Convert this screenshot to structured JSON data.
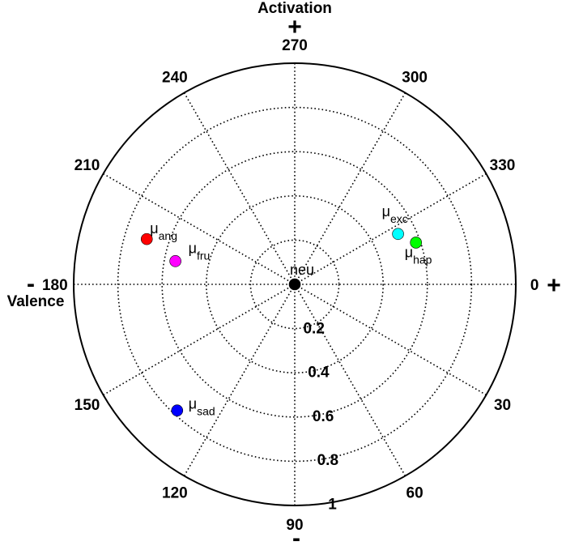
{
  "chart_data": {
    "type": "scatter",
    "coordinate_system": "polar",
    "angle_unit": "degrees",
    "r_range": [
      0,
      1
    ],
    "r_ticks": [
      "0.2",
      "0.4",
      "0.6",
      "0.8",
      "1"
    ],
    "r_tick_values": [
      0.2,
      0.4,
      0.6,
      0.8,
      1.0
    ],
    "angle_ticks": [
      {
        "angle": 0,
        "label": "0"
      },
      {
        "angle": 30,
        "label": "30"
      },
      {
        "angle": 60,
        "label": "60"
      },
      {
        "angle": 90,
        "label": "90"
      },
      {
        "angle": 120,
        "label": "120"
      },
      {
        "angle": 150,
        "label": "150"
      },
      {
        "angle": 180,
        "label": "180"
      },
      {
        "angle": 210,
        "label": "210"
      },
      {
        "angle": 240,
        "label": "240"
      },
      {
        "angle": 270,
        "label": "270"
      },
      {
        "angle": 300,
        "label": "300"
      },
      {
        "angle": 330,
        "label": "330"
      }
    ],
    "top_axis": {
      "label": "Activation",
      "sign": "+"
    },
    "bottom_axis": {
      "sign": "-"
    },
    "left_axis": {
      "label": "Valence",
      "sign": "-"
    },
    "right_axis": {
      "sign": "+"
    },
    "grid": true,
    "points": [
      {
        "name": "neu",
        "mu": "",
        "sub": "",
        "angle": 0,
        "r": 0.0,
        "color": "#000000"
      },
      {
        "name": "ang",
        "mu": "μ",
        "sub": "ang",
        "angle": 197,
        "r": 0.7,
        "color": "#ff0000"
      },
      {
        "name": "fru",
        "mu": "μ",
        "sub": "fru",
        "angle": 191,
        "r": 0.55,
        "color": "#ff00ff"
      },
      {
        "name": "exc",
        "mu": "μ",
        "sub": "exc",
        "angle": 334,
        "r": 0.52,
        "color": "#00ffff"
      },
      {
        "name": "hap",
        "mu": "μ",
        "sub": "hap",
        "angle": 341,
        "r": 0.58,
        "color": "#00ff00"
      },
      {
        "name": "sad",
        "mu": "μ",
        "sub": "sad",
        "angle": 133,
        "r": 0.78,
        "color": "#0000ff"
      }
    ]
  }
}
